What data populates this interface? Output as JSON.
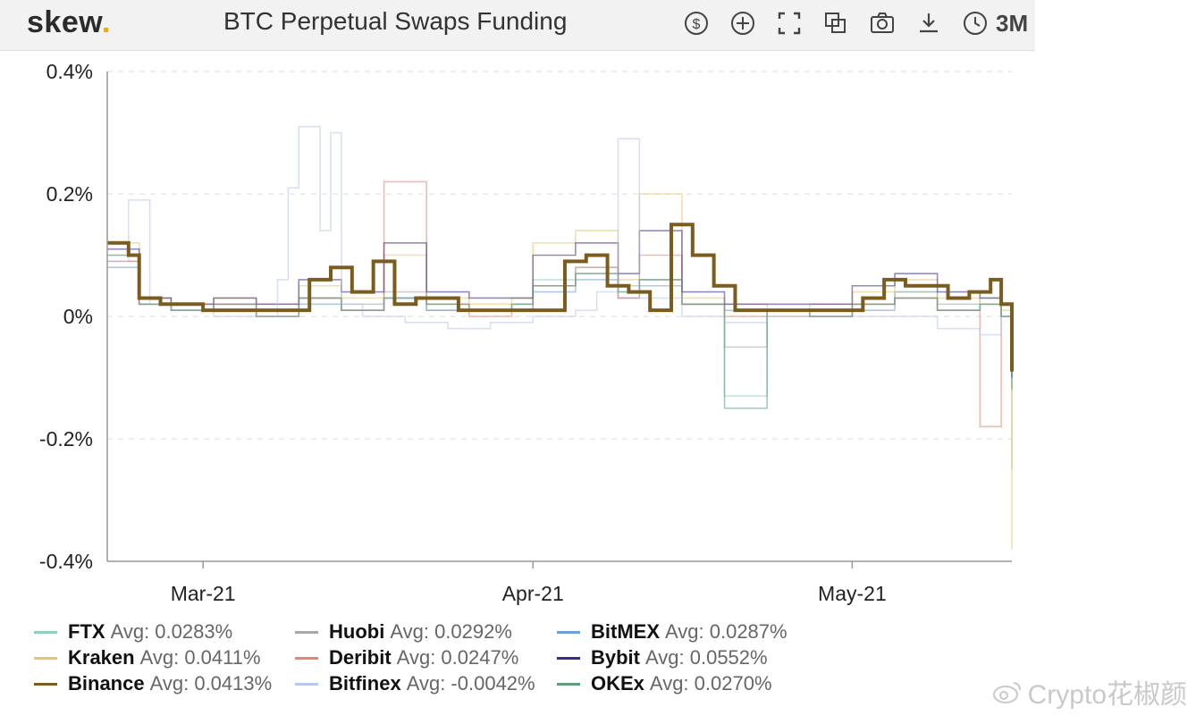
{
  "header": {
    "logo_text": "skew",
    "logo_dot": ".",
    "title": "BTC Perpetual Swaps Funding",
    "range": "3M",
    "tools": [
      "dollar-icon",
      "plus-icon",
      "fullscreen-icon",
      "copy-icon",
      "camera-icon",
      "download-icon",
      "clock-icon"
    ]
  },
  "watermark": "Crypto花椒颜",
  "colors": {
    "FTX": "#8fd1b8",
    "Huobi": "#a8a8a8",
    "BitMEX": "#6f9fd8",
    "Kraken": "#e8c56a",
    "Deribit": "#e8836e",
    "Bybit": "#3b2a8c",
    "Binance": "#7a5c1e",
    "Bitfinex": "#b9c6ef",
    "OKEx": "#5f9f7b"
  },
  "chart_data": {
    "type": "line",
    "title": "BTC Perpetual Swaps Funding",
    "xlabel": "",
    "ylabel": "",
    "ylim": [
      -0.4,
      0.4
    ],
    "y_ticks": [
      "0.4%",
      "0.2%",
      "0%",
      "-0.2%",
      "-0.4%"
    ],
    "x_ticks": [
      "Mar-21",
      "Apr-21",
      "May-21"
    ],
    "x_range_days": [
      0,
      85
    ],
    "x_tick_days": [
      9,
      40,
      70
    ],
    "grid": true,
    "legend_position": "bottom",
    "series": [
      {
        "name": "FTX",
        "avg": "Avg: 0.0283%",
        "x": [
          0,
          3,
          6,
          10,
          14,
          18,
          22,
          26,
          30,
          34,
          38,
          40,
          44,
          48,
          50,
          54,
          58,
          62,
          66,
          70,
          74,
          78,
          82,
          84,
          85
        ],
        "y": [
          0.1,
          0.02,
          0.01,
          0.02,
          0.0,
          0.03,
          0.01,
          0.03,
          0.02,
          0.01,
          0.02,
          0.06,
          0.08,
          0.04,
          0.06,
          0.02,
          -0.13,
          0.01,
          0.0,
          0.02,
          0.04,
          0.01,
          0.03,
          0.0,
          -0.25
        ]
      },
      {
        "name": "Huobi",
        "avg": "Avg: 0.0292%",
        "x": [
          0,
          3,
          6,
          10,
          14,
          18,
          22,
          26,
          30,
          34,
          38,
          40,
          44,
          48,
          50,
          54,
          58,
          62,
          66,
          70,
          74,
          78,
          82,
          84,
          85
        ],
        "y": [
          0.09,
          0.03,
          0.01,
          0.02,
          0.01,
          0.03,
          0.02,
          0.04,
          0.01,
          0.01,
          0.02,
          0.05,
          0.07,
          0.05,
          0.06,
          0.02,
          -0.05,
          0.01,
          0.0,
          0.02,
          0.04,
          0.02,
          0.02,
          0.0,
          -0.08
        ]
      },
      {
        "name": "BitMEX",
        "avg": "Avg: 0.0287%",
        "x": [
          0,
          3,
          6,
          10,
          14,
          18,
          22,
          26,
          30,
          34,
          38,
          40,
          44,
          48,
          50,
          54,
          58,
          62,
          66,
          70,
          74,
          78,
          82,
          84,
          85
        ],
        "y": [
          0.08,
          0.02,
          0.01,
          0.01,
          0.01,
          0.02,
          0.01,
          0.03,
          0.01,
          0.01,
          0.01,
          0.04,
          0.06,
          0.03,
          0.05,
          0.02,
          0.01,
          0.01,
          0.01,
          0.01,
          0.03,
          0.01,
          0.02,
          0.0,
          0.01
        ]
      },
      {
        "name": "Kraken",
        "avg": "Avg: 0.0411%",
        "x": [
          0,
          3,
          6,
          10,
          14,
          18,
          22,
          26,
          30,
          34,
          38,
          40,
          44,
          48,
          50,
          54,
          58,
          62,
          66,
          70,
          74,
          78,
          82,
          84,
          85
        ],
        "y": [
          0.12,
          0.03,
          0.02,
          0.03,
          0.02,
          0.05,
          0.03,
          0.1,
          0.03,
          0.02,
          0.03,
          0.12,
          0.14,
          0.06,
          0.2,
          0.03,
          0.02,
          0.01,
          0.02,
          0.04,
          0.06,
          0.03,
          0.02,
          0.01,
          -0.38
        ]
      },
      {
        "name": "Deribit",
        "avg": "Avg: 0.0247%",
        "x": [
          0,
          3,
          6,
          10,
          14,
          18,
          22,
          26,
          30,
          34,
          38,
          40,
          44,
          48,
          50,
          54,
          58,
          62,
          66,
          70,
          74,
          78,
          82,
          84,
          85
        ],
        "y": [
          0.09,
          0.02,
          0.01,
          0.02,
          0.0,
          0.03,
          0.01,
          0.22,
          0.02,
          0.0,
          0.01,
          0.05,
          0.08,
          0.03,
          0.1,
          0.02,
          0.0,
          0.0,
          0.0,
          0.02,
          0.03,
          0.01,
          -0.18,
          0.02,
          -0.1
        ]
      },
      {
        "name": "Bybit",
        "avg": "Avg: 0.0552%",
        "x": [
          0,
          3,
          6,
          10,
          14,
          18,
          22,
          26,
          30,
          34,
          38,
          40,
          44,
          48,
          50,
          54,
          58,
          62,
          66,
          70,
          74,
          78,
          82,
          84,
          85
        ],
        "y": [
          0.11,
          0.03,
          0.02,
          0.03,
          0.02,
          0.06,
          0.04,
          0.12,
          0.04,
          0.03,
          0.03,
          0.1,
          0.12,
          0.07,
          0.14,
          0.04,
          0.02,
          0.02,
          0.02,
          0.05,
          0.07,
          0.04,
          0.03,
          0.02,
          -0.1
        ]
      },
      {
        "name": "Binance",
        "avg": "Avg: 0.0413%",
        "x": [
          0,
          2,
          3,
          5,
          7,
          9,
          11,
          13,
          15,
          17,
          19,
          21,
          23,
          25,
          27,
          29,
          31,
          33,
          35,
          37,
          39,
          41,
          43,
          45,
          47,
          49,
          51,
          53,
          55,
          57,
          59,
          61,
          63,
          65,
          67,
          69,
          71,
          73,
          75,
          77,
          79,
          81,
          83,
          84,
          85
        ],
        "y": [
          0.12,
          0.1,
          0.03,
          0.02,
          0.02,
          0.01,
          0.01,
          0.01,
          0.01,
          0.01,
          0.06,
          0.08,
          0.04,
          0.09,
          0.02,
          0.03,
          0.03,
          0.01,
          0.01,
          0.01,
          0.01,
          0.01,
          0.09,
          0.1,
          0.05,
          0.04,
          0.01,
          0.15,
          0.1,
          0.05,
          0.01,
          0.01,
          0.01,
          0.01,
          0.01,
          0.01,
          0.03,
          0.06,
          0.05,
          0.05,
          0.03,
          0.04,
          0.06,
          0.02,
          -0.09
        ]
      },
      {
        "name": "Bitfinex",
        "avg": "Avg: -0.0042%",
        "x": [
          0,
          2,
          4,
          6,
          10,
          14,
          16,
          17,
          18,
          20,
          21,
          22,
          24,
          28,
          32,
          36,
          40,
          44,
          46,
          48,
          50,
          54,
          58,
          62,
          66,
          70,
          74,
          78,
          82,
          84,
          85
        ],
        "y": [
          0.09,
          0.19,
          0.02,
          0.01,
          0.0,
          0.0,
          0.06,
          0.21,
          0.31,
          0.14,
          0.3,
          0.02,
          0.0,
          -0.01,
          -0.02,
          -0.01,
          0.0,
          0.01,
          0.04,
          0.29,
          0.03,
          0.0,
          -0.01,
          0.0,
          0.0,
          0.0,
          0.0,
          -0.02,
          -0.03,
          0.0,
          0.01
        ]
      },
      {
        "name": "OKEx",
        "avg": "Avg: 0.0270%",
        "x": [
          0,
          3,
          6,
          10,
          14,
          18,
          22,
          26,
          30,
          34,
          38,
          40,
          44,
          48,
          50,
          54,
          58,
          62,
          66,
          70,
          74,
          78,
          82,
          84,
          85
        ],
        "y": [
          0.1,
          0.02,
          0.01,
          0.02,
          0.0,
          0.03,
          0.01,
          0.03,
          0.02,
          0.01,
          0.02,
          0.05,
          0.07,
          0.04,
          0.06,
          0.02,
          -0.15,
          0.01,
          0.0,
          0.02,
          0.03,
          0.01,
          0.02,
          0.0,
          -0.12
        ]
      }
    ]
  }
}
